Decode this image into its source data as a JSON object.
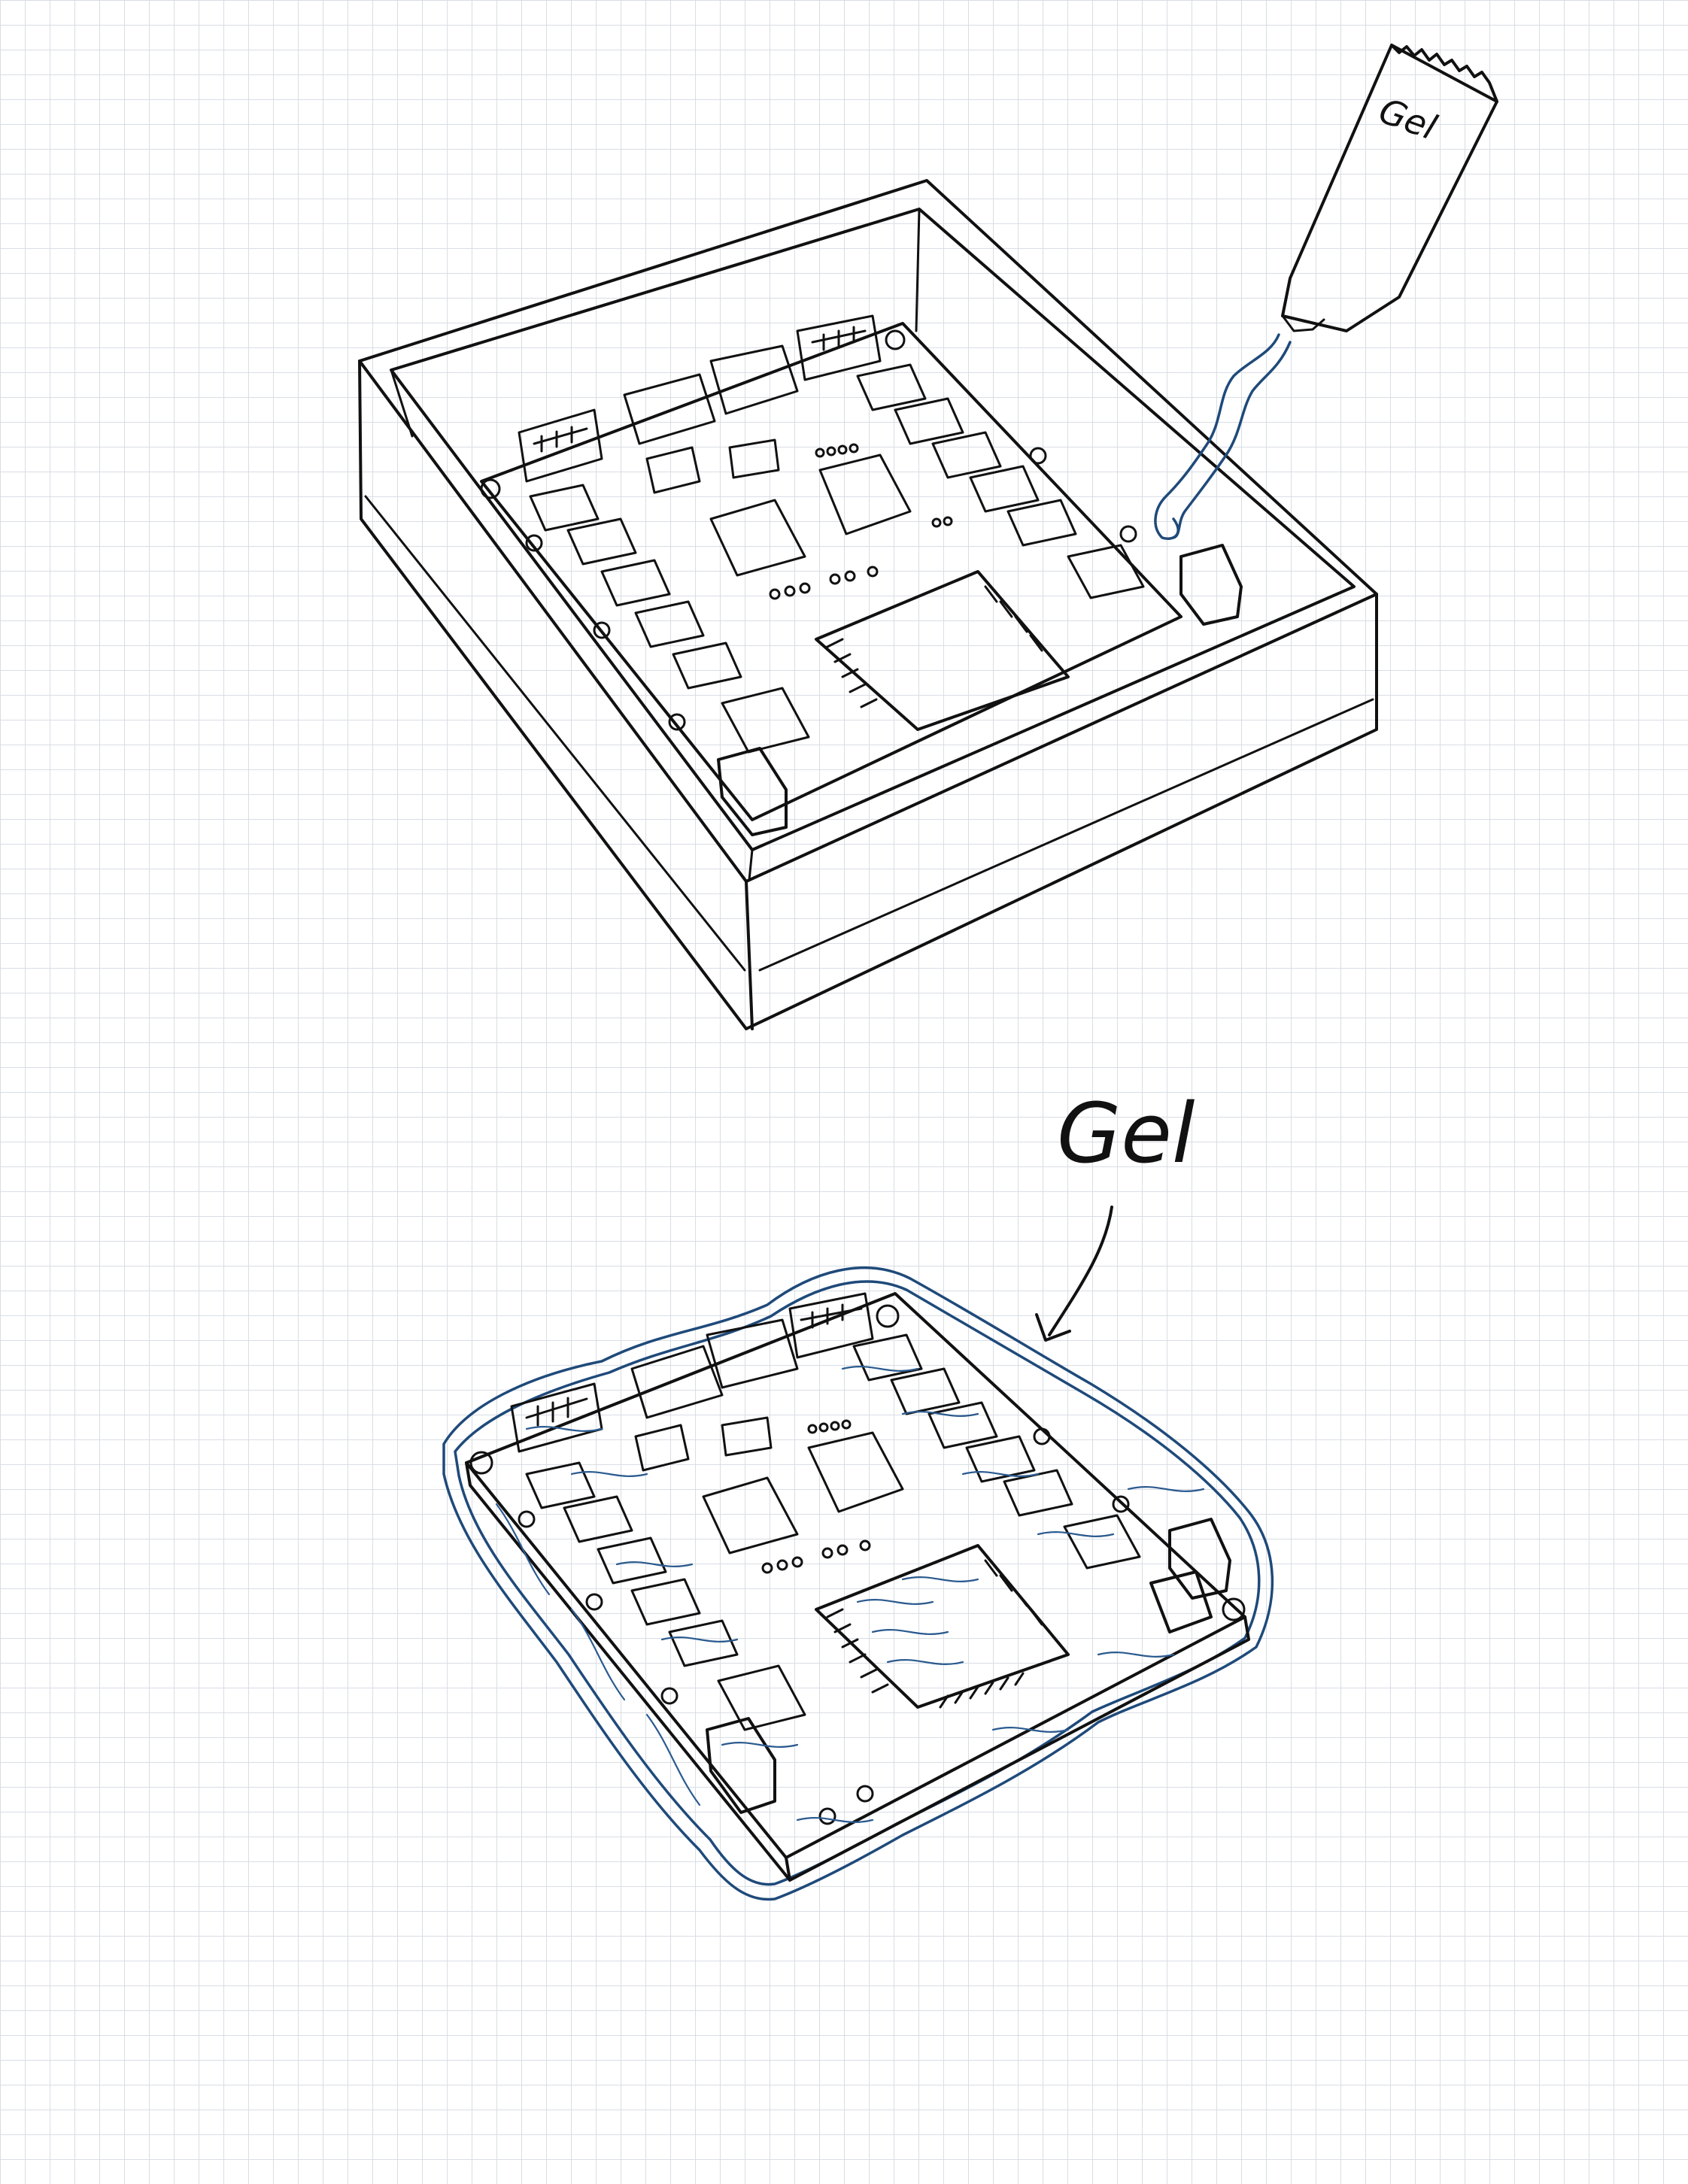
{
  "labels": {
    "tube_label": "Gel",
    "arrow_label": "Gel"
  },
  "colors": {
    "ink": "#111111",
    "gel": "#1f4a7a",
    "grid": "#d9dde3"
  },
  "icons": {
    "tube": "gel-tube-icon",
    "board": "circuit-board-icon",
    "enclosure": "enclosure-box-icon",
    "arrow": "arrow-icon"
  }
}
